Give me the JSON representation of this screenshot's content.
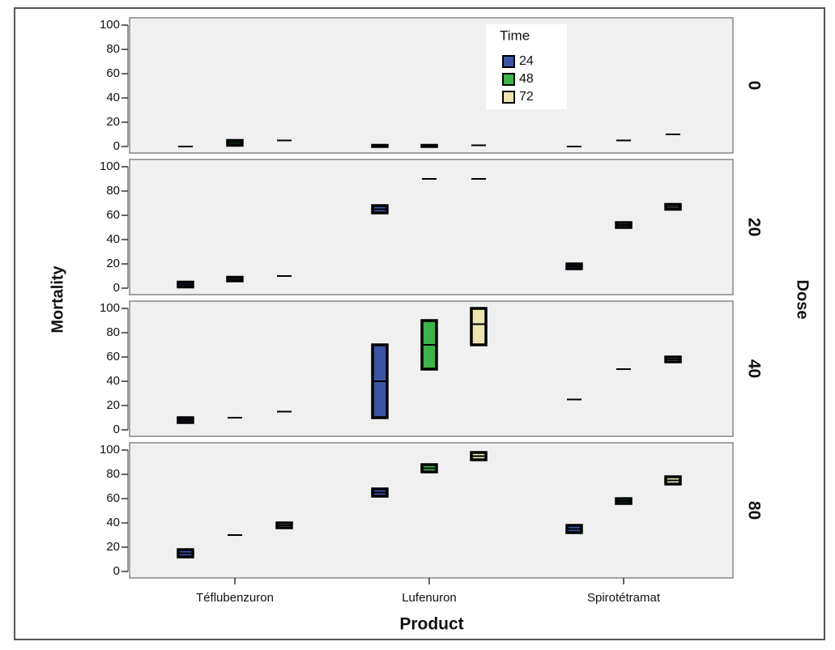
{
  "chart_data": {
    "type": "box",
    "x_label": "Product",
    "y_label": "Mortality",
    "facet_label": "Dose",
    "legend_title": "Time",
    "categories": [
      "Téflubenzuron",
      "Lufenuron",
      "Spirotétramat"
    ],
    "series": [
      {
        "name": "24",
        "color": "#3b55a3"
      },
      {
        "name": "48",
        "color": "#3db34a"
      },
      {
        "name": "72",
        "color": "#ede4b0"
      }
    ],
    "ylim": [
      0,
      100
    ],
    "yticks": [
      0,
      20,
      40,
      60,
      80,
      100
    ],
    "panels": [
      {
        "facet": 0,
        "series": [
          {
            "q1": [
              0,
              0,
              0
            ],
            "median": [
              0,
              0,
              0
            ],
            "q3": [
              0,
              1,
              0
            ]
          },
          {
            "q1": [
              1,
              0,
              5
            ],
            "median": [
              3,
              0.5,
              5
            ],
            "q3": [
              5,
              1,
              5
            ]
          },
          {
            "q1": [
              5,
              1,
              10
            ],
            "median": [
              5,
              1,
              10
            ],
            "q3": [
              5,
              1,
              10
            ]
          }
        ]
      },
      {
        "facet": 20,
        "series": [
          {
            "q1": [
              1,
              62,
              16
            ],
            "median": [
              3,
              65,
              18
            ],
            "q3": [
              5,
              68,
              20
            ]
          },
          {
            "q1": [
              6,
              90,
              50
            ],
            "median": [
              7,
              90,
              52
            ],
            "q3": [
              9,
              90,
              54
            ]
          },
          {
            "q1": [
              10,
              90,
              65
            ],
            "median": [
              10,
              90,
              67
            ],
            "q3": [
              10,
              90,
              69
            ]
          }
        ]
      },
      {
        "facet": 40,
        "series": [
          {
            "q1": [
              6,
              10,
              25
            ],
            "median": [
              8,
              40,
              25
            ],
            "q3": [
              10,
              70,
              25
            ]
          },
          {
            "q1": [
              10,
              50,
              50
            ],
            "median": [
              10,
              70,
              50
            ],
            "q3": [
              10,
              90,
              50
            ]
          },
          {
            "q1": [
              15,
              70,
              56
            ],
            "median": [
              15,
              87,
              58
            ],
            "q3": [
              15,
              100,
              60
            ]
          }
        ]
      },
      {
        "facet": 80,
        "series": [
          {
            "q1": [
              12,
              62,
              32
            ],
            "median": [
              15,
              65,
              35
            ],
            "q3": [
              18,
              68,
              38
            ]
          },
          {
            "q1": [
              30,
              82,
              56
            ],
            "median": [
              30,
              85,
              58
            ],
            "q3": [
              30,
              88,
              60
            ]
          },
          {
            "q1": [
              36,
              92,
              72
            ],
            "median": [
              38,
              95,
              75
            ],
            "q3": [
              40,
              98,
              78
            ]
          }
        ]
      }
    ]
  }
}
